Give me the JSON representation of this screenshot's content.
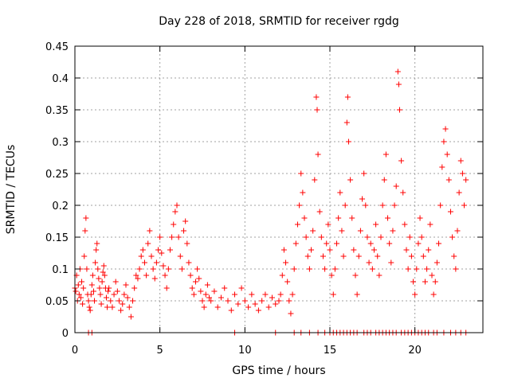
{
  "chart_data": {
    "type": "scatter",
    "title": "Day 228 of 2018, SRMTID for receiver rgdg",
    "xlabel": "GPS time / hours",
    "ylabel": "SRMTID / TECUs",
    "xlim": [
      0,
      24
    ],
    "ylim": [
      0,
      0.45
    ],
    "xticks": [
      0,
      5,
      10,
      15,
      20
    ],
    "xtick_labels": [
      "0",
      "5",
      "10",
      "15",
      "20"
    ],
    "yticks": [
      0,
      0.05,
      0.1,
      0.15,
      0.2,
      0.25,
      0.3,
      0.35,
      0.4,
      0.45
    ],
    "ytick_labels": [
      "0",
      "0.05",
      "0.1",
      "0.15",
      "0.2",
      "0.25",
      "0.3",
      "0.35",
      "0.4",
      "0.45"
    ],
    "grid": true,
    "series": [
      {
        "name": "SRMTID",
        "color": "#ff0000",
        "marker": "plus",
        "points": [
          [
            0.0,
            0.07
          ],
          [
            0.05,
            0.065
          ],
          [
            0.1,
            0.09
          ],
          [
            0.15,
            0.05
          ],
          [
            0.2,
            0.075
          ],
          [
            0.25,
            0.06
          ],
          [
            0.3,
            0.1
          ],
          [
            0.35,
            0.055
          ],
          [
            0.4,
            0.08
          ],
          [
            0.45,
            0.045
          ],
          [
            0.5,
            0.07
          ],
          [
            0.55,
            0.12
          ],
          [
            0.6,
            0.16
          ],
          [
            0.65,
            0.18
          ],
          [
            0.7,
            0.1
          ],
          [
            0.75,
            0.06
          ],
          [
            0.8,
            0.05
          ],
          [
            0.85,
            0.04
          ],
          [
            0.9,
            0.035
          ],
          [
            0.95,
            0.06
          ],
          [
            1.0,
            0.075
          ],
          [
            1.05,
            0.09
          ],
          [
            1.1,
            0.065
          ],
          [
            1.15,
            0.05
          ],
          [
            1.2,
            0.11
          ],
          [
            1.25,
            0.13
          ],
          [
            1.3,
            0.14
          ],
          [
            1.35,
            0.1
          ],
          [
            1.4,
            0.085
          ],
          [
            1.45,
            0.07
          ],
          [
            1.5,
            0.06
          ],
          [
            1.55,
            0.045
          ],
          [
            1.6,
            0.08
          ],
          [
            1.65,
            0.095
          ],
          [
            1.7,
            0.105
          ],
          [
            1.75,
            0.09
          ],
          [
            1.8,
            0.07
          ],
          [
            1.85,
            0.055
          ],
          [
            1.9,
            0.04
          ],
          [
            1.95,
            0.065
          ],
          [
            2.0,
            0.07
          ],
          [
            2.1,
            0.05
          ],
          [
            2.2,
            0.04
          ],
          [
            2.3,
            0.06
          ],
          [
            2.4,
            0.08
          ],
          [
            2.5,
            0.065
          ],
          [
            2.6,
            0.05
          ],
          [
            2.7,
            0.035
          ],
          [
            2.8,
            0.045
          ],
          [
            2.9,
            0.06
          ],
          [
            3.0,
            0.075
          ],
          [
            3.1,
            0.055
          ],
          [
            3.2,
            0.04
          ],
          [
            3.3,
            0.025
          ],
          [
            3.4,
            0.05
          ],
          [
            3.5,
            0.07
          ],
          [
            3.6,
            0.09
          ],
          [
            3.7,
            0.085
          ],
          [
            3.8,
            0.1
          ],
          [
            3.9,
            0.12
          ],
          [
            4.0,
            0.13
          ],
          [
            4.1,
            0.11
          ],
          [
            4.2,
            0.09
          ],
          [
            4.3,
            0.14
          ],
          [
            4.4,
            0.16
          ],
          [
            4.5,
            0.12
          ],
          [
            4.6,
            0.1
          ],
          [
            4.7,
            0.085
          ],
          [
            4.8,
            0.11
          ],
          [
            4.9,
            0.13
          ],
          [
            5.0,
            0.15
          ],
          [
            5.1,
            0.125
          ],
          [
            5.2,
            0.105
          ],
          [
            5.3,
            0.09
          ],
          [
            5.4,
            0.07
          ],
          [
            5.5,
            0.1
          ],
          [
            5.6,
            0.13
          ],
          [
            5.7,
            0.15
          ],
          [
            5.8,
            0.17
          ],
          [
            5.9,
            0.19
          ],
          [
            6.0,
            0.2
          ],
          [
            6.1,
            0.15
          ],
          [
            6.2,
            0.12
          ],
          [
            6.3,
            0.1
          ],
          [
            6.4,
            0.16
          ],
          [
            6.5,
            0.175
          ],
          [
            6.6,
            0.14
          ],
          [
            6.7,
            0.11
          ],
          [
            6.8,
            0.09
          ],
          [
            6.9,
            0.07
          ],
          [
            7.0,
            0.06
          ],
          [
            7.1,
            0.08
          ],
          [
            7.2,
            0.1
          ],
          [
            7.3,
            0.085
          ],
          [
            7.4,
            0.065
          ],
          [
            7.5,
            0.05
          ],
          [
            7.6,
            0.04
          ],
          [
            7.7,
            0.06
          ],
          [
            7.8,
            0.075
          ],
          [
            7.9,
            0.055
          ],
          [
            8.0,
            0.05
          ],
          [
            8.2,
            0.065
          ],
          [
            8.4,
            0.04
          ],
          [
            8.6,
            0.055
          ],
          [
            8.8,
            0.07
          ],
          [
            9.0,
            0.05
          ],
          [
            9.2,
            0.035
          ],
          [
            9.4,
            0.06
          ],
          [
            9.6,
            0.045
          ],
          [
            9.8,
            0.07
          ],
          [
            10.0,
            0.05
          ],
          [
            10.2,
            0.04
          ],
          [
            10.4,
            0.06
          ],
          [
            10.6,
            0.045
          ],
          [
            10.8,
            0.035
          ],
          [
            11.0,
            0.05
          ],
          [
            11.2,
            0.06
          ],
          [
            11.4,
            0.04
          ],
          [
            11.6,
            0.055
          ],
          [
            11.8,
            0.045
          ],
          [
            12.0,
            0.05
          ],
          [
            12.1,
            0.06
          ],
          [
            12.2,
            0.09
          ],
          [
            12.3,
            0.13
          ],
          [
            12.4,
            0.11
          ],
          [
            12.5,
            0.08
          ],
          [
            12.6,
            0.05
          ],
          [
            12.7,
            0.03
          ],
          [
            12.8,
            0.06
          ],
          [
            12.9,
            0.1
          ],
          [
            13.0,
            0.14
          ],
          [
            13.1,
            0.17
          ],
          [
            13.2,
            0.2
          ],
          [
            13.3,
            0.25
          ],
          [
            13.4,
            0.22
          ],
          [
            13.5,
            0.18
          ],
          [
            13.6,
            0.15
          ],
          [
            13.7,
            0.12
          ],
          [
            13.8,
            0.1
          ],
          [
            13.9,
            0.13
          ],
          [
            14.0,
            0.16
          ],
          [
            14.1,
            0.24
          ],
          [
            14.2,
            0.37
          ],
          [
            14.25,
            0.35
          ],
          [
            14.3,
            0.28
          ],
          [
            14.4,
            0.19
          ],
          [
            14.5,
            0.15
          ],
          [
            14.6,
            0.12
          ],
          [
            14.7,
            0.1
          ],
          [
            14.8,
            0.14
          ],
          [
            14.9,
            0.17
          ],
          [
            15.0,
            0.13
          ],
          [
            15.1,
            0.09
          ],
          [
            15.2,
            0.06
          ],
          [
            15.3,
            0.1
          ],
          [
            15.4,
            0.14
          ],
          [
            15.5,
            0.18
          ],
          [
            15.6,
            0.22
          ],
          [
            15.7,
            0.16
          ],
          [
            15.8,
            0.12
          ],
          [
            15.9,
            0.2
          ],
          [
            16.0,
            0.33
          ],
          [
            16.05,
            0.37
          ],
          [
            16.1,
            0.3
          ],
          [
            16.2,
            0.24
          ],
          [
            16.3,
            0.18
          ],
          [
            16.4,
            0.13
          ],
          [
            16.5,
            0.09
          ],
          [
            16.6,
            0.06
          ],
          [
            16.7,
            0.12
          ],
          [
            16.8,
            0.16
          ],
          [
            16.9,
            0.21
          ],
          [
            17.0,
            0.25
          ],
          [
            17.1,
            0.2
          ],
          [
            17.2,
            0.15
          ],
          [
            17.3,
            0.11
          ],
          [
            17.4,
            0.14
          ],
          [
            17.5,
            0.1
          ],
          [
            17.6,
            0.13
          ],
          [
            17.7,
            0.17
          ],
          [
            17.8,
            0.12
          ],
          [
            17.9,
            0.09
          ],
          [
            18.0,
            0.15
          ],
          [
            18.1,
            0.2
          ],
          [
            18.2,
            0.24
          ],
          [
            18.3,
            0.28
          ],
          [
            18.4,
            0.18
          ],
          [
            18.5,
            0.14
          ],
          [
            18.6,
            0.11
          ],
          [
            18.7,
            0.16
          ],
          [
            18.8,
            0.2
          ],
          [
            18.9,
            0.23
          ],
          [
            19.0,
            0.41
          ],
          [
            19.05,
            0.39
          ],
          [
            19.1,
            0.35
          ],
          [
            19.2,
            0.27
          ],
          [
            19.3,
            0.22
          ],
          [
            19.4,
            0.17
          ],
          [
            19.5,
            0.13
          ],
          [
            19.6,
            0.1
          ],
          [
            19.7,
            0.15
          ],
          [
            19.8,
            0.12
          ],
          [
            19.9,
            0.08
          ],
          [
            20.0,
            0.06
          ],
          [
            20.1,
            0.1
          ],
          [
            20.2,
            0.14
          ],
          [
            20.3,
            0.18
          ],
          [
            20.4,
            0.15
          ],
          [
            20.5,
            0.12
          ],
          [
            20.6,
            0.08
          ],
          [
            20.7,
            0.1
          ],
          [
            20.8,
            0.13
          ],
          [
            20.9,
            0.17
          ],
          [
            21.0,
            0.09
          ],
          [
            21.1,
            0.06
          ],
          [
            21.2,
            0.08
          ],
          [
            21.3,
            0.11
          ],
          [
            21.4,
            0.14
          ],
          [
            21.5,
            0.2
          ],
          [
            21.6,
            0.26
          ],
          [
            21.7,
            0.3
          ],
          [
            21.8,
            0.32
          ],
          [
            21.9,
            0.28
          ],
          [
            22.0,
            0.24
          ],
          [
            22.1,
            0.19
          ],
          [
            22.2,
            0.15
          ],
          [
            22.3,
            0.12
          ],
          [
            22.4,
            0.1
          ],
          [
            22.5,
            0.16
          ],
          [
            22.6,
            0.22
          ],
          [
            22.7,
            0.27
          ],
          [
            22.8,
            0.25
          ],
          [
            22.9,
            0.2
          ],
          [
            23.0,
            0.24
          ],
          [
            0.8,
            0.0
          ],
          [
            1.0,
            0.0
          ],
          [
            9.4,
            0.0
          ],
          [
            11.8,
            0.0
          ],
          [
            12.9,
            0.0
          ],
          [
            13.3,
            0.0
          ],
          [
            13.8,
            0.0
          ],
          [
            14.3,
            0.0
          ],
          [
            14.7,
            0.0
          ],
          [
            15.0,
            0.0
          ],
          [
            15.2,
            0.0
          ],
          [
            15.4,
            0.0
          ],
          [
            15.6,
            0.0
          ],
          [
            15.8,
            0.0
          ],
          [
            16.0,
            0.0
          ],
          [
            16.2,
            0.0
          ],
          [
            16.4,
            0.0
          ],
          [
            16.6,
            0.0
          ],
          [
            17.0,
            0.0
          ],
          [
            17.2,
            0.0
          ],
          [
            17.4,
            0.0
          ],
          [
            17.7,
            0.0
          ],
          [
            17.9,
            0.0
          ],
          [
            18.1,
            0.0
          ],
          [
            18.3,
            0.0
          ],
          [
            18.5,
            0.0
          ],
          [
            18.7,
            0.0
          ],
          [
            18.9,
            0.0
          ],
          [
            19.2,
            0.0
          ],
          [
            19.4,
            0.0
          ],
          [
            19.6,
            0.0
          ],
          [
            19.8,
            0.0
          ],
          [
            20.0,
            0.0
          ],
          [
            20.2,
            0.0
          ],
          [
            20.4,
            0.0
          ],
          [
            20.6,
            0.0
          ],
          [
            20.8,
            0.0
          ],
          [
            21.1,
            0.0
          ],
          [
            21.3,
            0.0
          ],
          [
            21.7,
            0.0
          ],
          [
            22.1,
            0.0
          ],
          [
            22.4,
            0.0
          ],
          [
            22.7,
            0.0
          ],
          [
            23.0,
            0.0
          ]
        ]
      }
    ]
  }
}
